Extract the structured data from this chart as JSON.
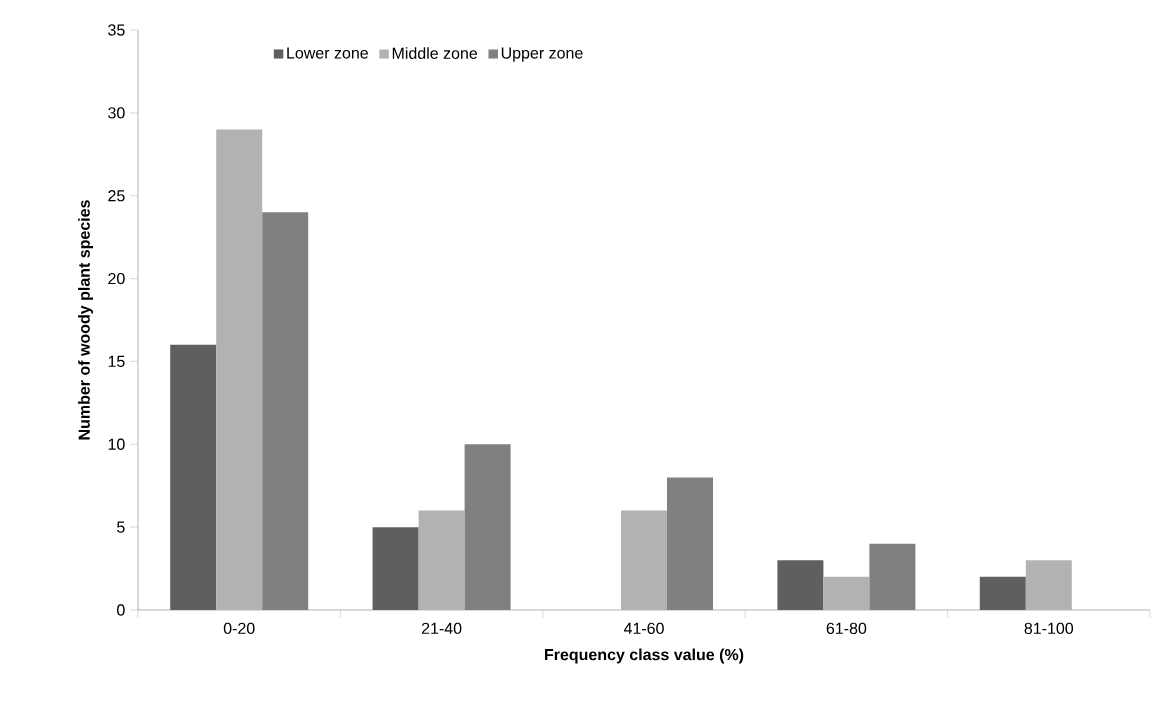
{
  "chart_data": {
    "type": "bar",
    "xlabel": "Frequency class value (%)",
    "ylabel": "Number of woody plant species",
    "categories": [
      "0-20",
      "21-40",
      "41-60",
      "61-80",
      "81-100"
    ],
    "series": [
      {
        "name": "Lower zone",
        "color": "#5f5f5f",
        "values": [
          16,
          5,
          0,
          3,
          2
        ]
      },
      {
        "name": "Middle zone",
        "color": "#b2b2b2",
        "values": [
          29,
          6,
          6,
          2,
          3
        ]
      },
      {
        "name": "Upper zone",
        "color": "#808080",
        "values": [
          24,
          10,
          8,
          4,
          0
        ]
      }
    ],
    "ylim": [
      0,
      35
    ],
    "yticks": [
      0,
      5,
      10,
      15,
      20,
      25,
      30,
      35
    ],
    "grid": false,
    "legend": "top left"
  }
}
